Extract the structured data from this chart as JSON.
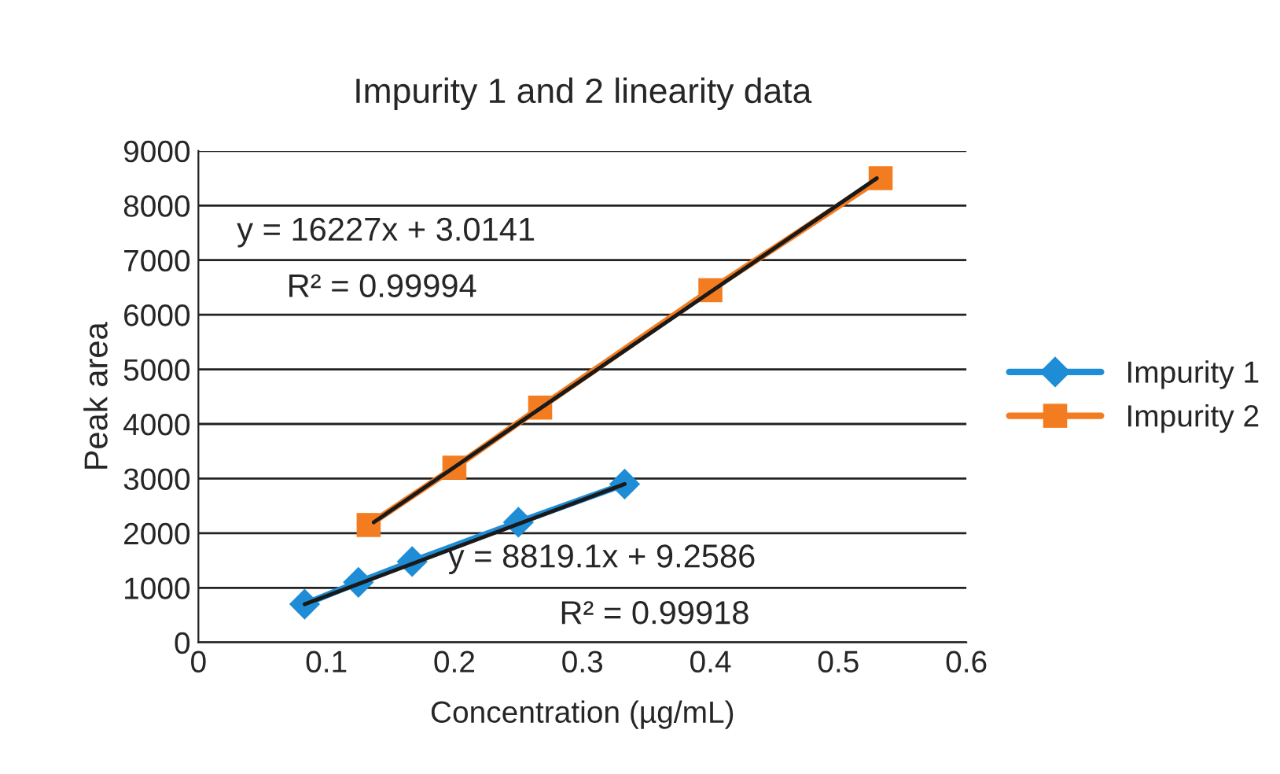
{
  "chart_data": {
    "type": "line",
    "title": "Impurity 1 and 2 linearity data",
    "xlabel": "Concentration (µg/mL)",
    "ylabel": "Peak area",
    "series": [
      {
        "name": "Impurity 1",
        "color": "#1f8dd6",
        "marker": "diamond",
        "x": [
          0.083,
          0.125,
          0.167,
          0.25,
          0.333
        ],
        "values": [
          700,
          1100,
          1480,
          2200,
          2900
        ]
      },
      {
        "name": "Impurity 2",
        "color": "#f47c20",
        "marker": "square",
        "x": [
          0.133,
          0.2,
          0.267,
          0.4,
          0.533
        ],
        "values": [
          2150,
          3200,
          4300,
          6450,
          8500
        ]
      },
      {
        "type": "line",
        "color": "#1a1a1a",
        "marker": "none",
        "x": [
          0.083,
          0.333
        ],
        "values": [
          700,
          2900
        ]
      },
      {
        "type": "line",
        "color": "#1a1a1a",
        "marker": "none",
        "x": [
          0.137,
          0.53
        ],
        "values": [
          2200,
          8500
        ]
      }
    ],
    "xlim": [
      0,
      0.6
    ],
    "xticks": [
      0,
      0.1,
      0.2,
      0.3,
      0.4,
      0.5,
      0.6
    ],
    "ylim": [
      0,
      9000
    ],
    "yticks": [
      0,
      1000,
      2000,
      3000,
      4000,
      5000,
      6000,
      7000,
      8000,
      9000
    ],
    "grid": "y",
    "legend": "right",
    "annotations": [
      "y = 16227x + 3.0141",
      "R² = 0.99994",
      "y = 8819.1x + 9.2586",
      "R² = 0.99918"
    ]
  }
}
